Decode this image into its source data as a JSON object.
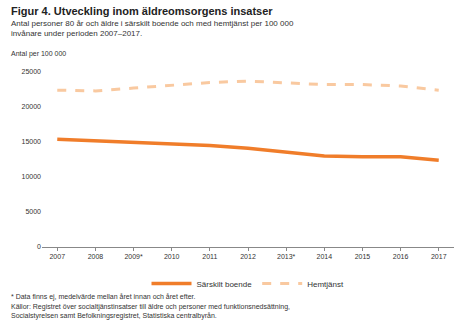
{
  "chart_data": {
    "type": "line",
    "title": "Figur 4. Utveckling inom äldreomsorgens insatser",
    "subtitle": [
      "Antal personer 80 år och äldre i särskilt boende och med hemtjänst per 100 000",
      "invånare under perioden 2007–2017."
    ],
    "ylabel": "Antal per 100 000",
    "categories": [
      "2007",
      "2008",
      "2009*",
      "2010",
      "2011",
      "2012",
      "2013*",
      "2014",
      "2015",
      "2016",
      "2017"
    ],
    "series": [
      {
        "name": "Särskilt boende",
        "color": "#f07d2a",
        "line_style": "solid",
        "values": [
          15400,
          15200,
          15000,
          14700,
          14500,
          14100,
          13500,
          13000,
          12900,
          12900,
          12400
        ]
      },
      {
        "name": "Hemtjänst",
        "color": "#f9c9a0",
        "line_style": "dash",
        "values": [
          22400,
          22300,
          22700,
          23100,
          23500,
          23700,
          23400,
          23200,
          23200,
          23000,
          22400
        ]
      }
    ],
    "ylim": [
      0,
      25000
    ],
    "yticks": [
      0,
      5000,
      10000,
      15000,
      20000,
      25000
    ],
    "grid": false,
    "legend": "bottom",
    "annotations": [
      "* Data finns ej, medelvärde mellan året innan och året efter.",
      "Källor: Registret över socialtjänstinsatser till äldre och personer med funktionsnedsättning,",
      "Socialstyrelsen samt Befolkningsregistret, Statistiska centralbyrån."
    ]
  }
}
